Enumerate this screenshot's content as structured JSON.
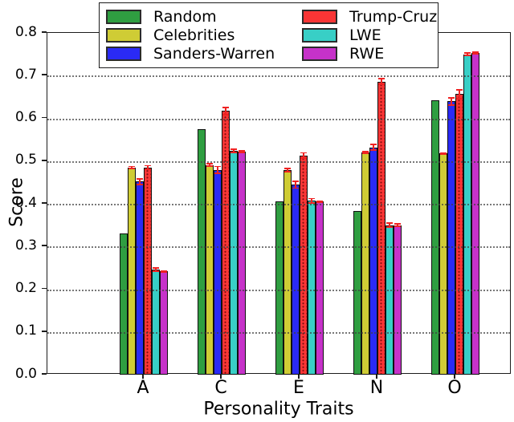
{
  "figure": {
    "ylabel": "Score",
    "xlabel": "Personality Traits"
  },
  "chart_data": {
    "type": "bar",
    "title": "",
    "xlabel": "Personality Traits",
    "ylabel": "Score",
    "categories": [
      "A",
      "C",
      "E",
      "N",
      "O"
    ],
    "ylim": [
      0.0,
      0.8
    ],
    "yticks": [
      "0.0",
      "0.1",
      "0.2",
      "0.3",
      "0.4",
      "0.5",
      "0.6",
      "0.7",
      "0.8"
    ],
    "grid": "horizontal-dotted",
    "legend_position": "upper-center-two-columns",
    "error_bar_color": "#ef2222",
    "bar_edge_color": "#101010",
    "series": [
      {
        "name": "Random",
        "color": "#2f9e41",
        "hatch": "none",
        "values": [
          0.331,
          0.574,
          0.405,
          0.383,
          0.643
        ],
        "errors": [
          0,
          0,
          0,
          0,
          0
        ]
      },
      {
        "name": "Celebrities",
        "color": "#cfcc35",
        "hatch": "none",
        "values": [
          0.485,
          0.491,
          0.479,
          0.52,
          0.518
        ],
        "errors": [
          0.004,
          0.004,
          0.005,
          0.004,
          0.003
        ]
      },
      {
        "name": "Sanders-Warren",
        "color": "#2a2af5",
        "hatch": "none",
        "values": [
          0.452,
          0.479,
          0.445,
          0.532,
          0.64
        ],
        "errors": [
          0.008,
          0.01,
          0.01,
          0.008,
          0.01
        ]
      },
      {
        "name": "Trump-Cruz",
        "color": "#f93535",
        "hatch": "dots",
        "values": [
          0.485,
          0.617,
          0.513,
          0.686,
          0.657
        ],
        "errors": [
          0.006,
          0.01,
          0.008,
          0.008,
          0.012
        ]
      },
      {
        "name": "LWE",
        "color": "#38cfc6",
        "hatch": "none",
        "values": [
          0.246,
          0.524,
          0.407,
          0.35,
          0.75
        ],
        "errors": [
          0.006,
          0.006,
          0.007,
          0.006,
          0.005
        ]
      },
      {
        "name": "RWE",
        "color": "#c632c9",
        "hatch": "none",
        "values": [
          0.242,
          0.522,
          0.405,
          0.35,
          0.753
        ],
        "errors": [
          0.003,
          0.003,
          0.003,
          0.004,
          0.004
        ]
      }
    ]
  }
}
